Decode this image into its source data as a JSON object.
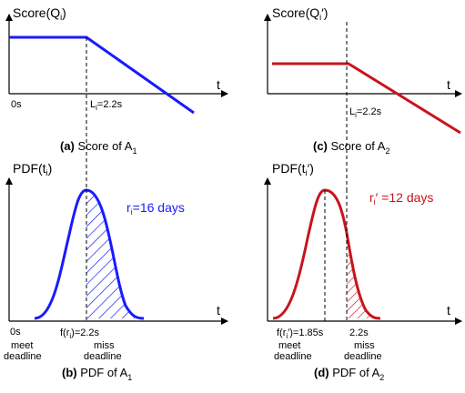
{
  "colors": {
    "blue": "#1a1aff",
    "red": "#c8141e",
    "black": "#000000"
  },
  "panels": {
    "a": {
      "ylabel_base": "Score(Q",
      "ylabel_sub": "i",
      "ylabel_end": ")",
      "xlabel": "t",
      "origin_label": "0s",
      "li_base": "L",
      "li_sub": "i",
      "li_end": "=2.2s",
      "caption_bold": "(a)",
      "caption_text": " Score of A",
      "caption_sub": "1"
    },
    "c": {
      "ylabel_base": "Score(Q",
      "ylabel_sub": "i",
      "ylabel_end": "′)",
      "xlabel": "t",
      "li_base": "L",
      "li_sub": "i",
      "li_end": "=2.2s",
      "caption_bold": "(c)",
      "caption_text": " Score of A",
      "caption_sub": "2"
    },
    "b": {
      "ylabel_base": "PDF(t",
      "ylabel_sub": "i",
      "ylabel_end": ")",
      "xlabel": "t",
      "r_base": "r",
      "r_sub": "i",
      "r_end": "=16 days",
      "origin_label": "0s",
      "f_base": "f(r",
      "f_sub": "i",
      "f_end": ")=2.2s",
      "meet1": "meet",
      "meet2": "deadline",
      "miss1": "miss",
      "miss2": "deadline",
      "caption_bold": "(b)",
      "caption_text": " PDF of A",
      "caption_sub": "1"
    },
    "d": {
      "ylabel_base": "PDF(t",
      "ylabel_sub": "i",
      "ylabel_end": "′)",
      "xlabel": "t",
      "r_base": "r",
      "r_sub": "i",
      "r_end": "′ =12 days",
      "f_base": "f(r",
      "f_sub": "i",
      "f_end": "′)=1.85s",
      "deadline_label": "2.2s",
      "meet1": "meet",
      "meet2": "deadline",
      "miss1": "miss",
      "miss2": "deadline",
      "caption_bold": "(d)",
      "caption_text": " PDF of A",
      "caption_sub": "2"
    }
  }
}
